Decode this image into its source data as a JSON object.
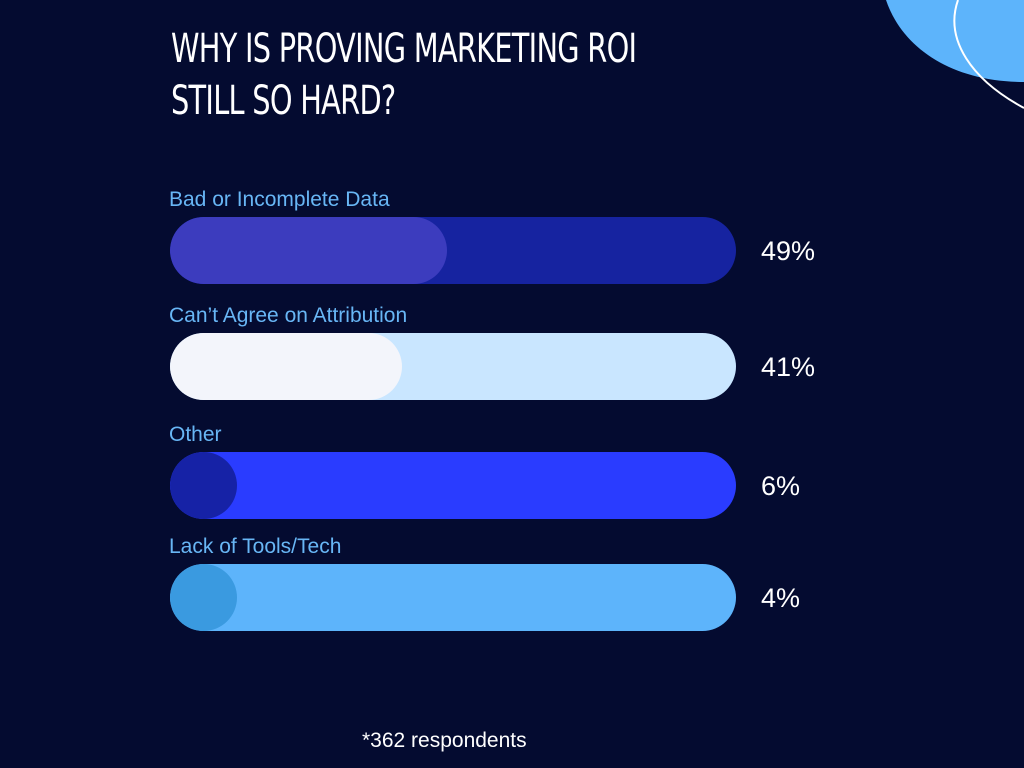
{
  "title": {
    "line1": "WHY IS PROVING MARKETING ROI",
    "line2": "STILL SO HARD?"
  },
  "chart_data": {
    "type": "bar",
    "orientation": "horizontal",
    "title": "WHY IS PROVING MARKETING ROI STILL SO HARD?",
    "categories": [
      "Bad or Incomplete Data",
      "Can’t Agree on Attribution",
      "Other",
      "Lack of Tools/Tech"
    ],
    "values": [
      49,
      41,
      6,
      4
    ],
    "value_labels": [
      "49%",
      "41%",
      "6%",
      "4%"
    ],
    "unit": "%",
    "xlim": [
      0,
      100
    ],
    "grid": false,
    "legend": "none",
    "bar_colors": [
      {
        "track": "#1623a0",
        "fill": "#3c3cbe"
      },
      {
        "track": "#c9e6ff",
        "fill": "#f3f5fb"
      },
      {
        "track": "#2a3cff",
        "fill": "#1622a6"
      },
      {
        "track": "#5db4fb",
        "fill": "#3a9ae0"
      }
    ],
    "footnote": "*362 respondents"
  },
  "colors": {
    "background": "#040b30",
    "label": "#68b6f5",
    "text": "#ffffff",
    "accent_blob": "#5db4fb"
  }
}
